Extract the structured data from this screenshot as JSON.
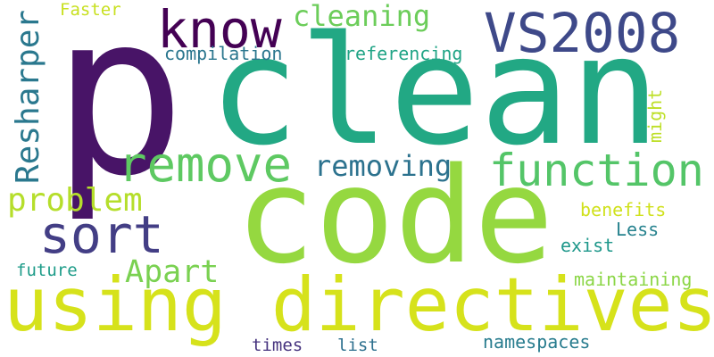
{
  "words": [
    {
      "text": "p",
      "color": "#481467"
    },
    {
      "text": "clean",
      "color": "#22a884"
    },
    {
      "text": "code",
      "color": "#95d840"
    },
    {
      "text": "using directives",
      "color": "#d6e21b"
    },
    {
      "text": "VS2008",
      "color": "#3e4989"
    },
    {
      "text": "know",
      "color": "#440154"
    },
    {
      "text": "remove",
      "color": "#5ec962"
    },
    {
      "text": "function",
      "color": "#54c568"
    },
    {
      "text": "sort",
      "color": "#433e85"
    },
    {
      "text": "cleaning",
      "color": "#6ccd5a"
    },
    {
      "text": "Resharper",
      "color": "#2a788e"
    },
    {
      "text": "removing",
      "color": "#2c728e"
    },
    {
      "text": "problem",
      "color": "#b5de2b"
    },
    {
      "text": "Apart",
      "color": "#7ad151"
    },
    {
      "text": "compilation",
      "color": "#2a768e"
    },
    {
      "text": "referencing",
      "color": "#20a486"
    },
    {
      "text": "Faster",
      "color": "#c8e020"
    },
    {
      "text": "might",
      "color": "#bddf26"
    },
    {
      "text": "benefits",
      "color": "#d0e11c"
    },
    {
      "text": "Less",
      "color": "#26828e"
    },
    {
      "text": "exist",
      "color": "#1f988b"
    },
    {
      "text": "future",
      "color": "#1e9c89"
    },
    {
      "text": "maintaining",
      "color": "#8bd646"
    },
    {
      "text": "times",
      "color": "#46337e"
    },
    {
      "text": "list",
      "color": "#2d708e"
    },
    {
      "text": "namespaces",
      "color": "#287c8e"
    }
  ]
}
